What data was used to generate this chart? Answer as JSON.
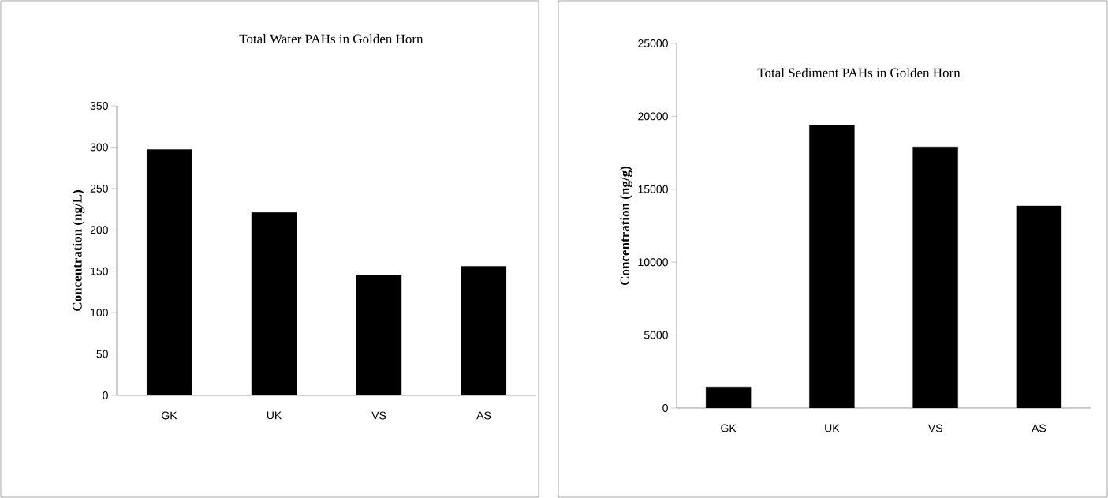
{
  "chart_data": [
    {
      "type": "bar",
      "title": "Total Water PAHs  in Golden Horn",
      "ylabel": "Concentration (ng/L)",
      "categories": [
        "GK",
        "UK",
        "VS",
        "AS"
      ],
      "values": [
        297,
        221,
        145,
        156
      ],
      "color": "#000000",
      "ylim": [
        0,
        350
      ],
      "yticks": [
        0,
        50,
        100,
        150,
        200,
        250,
        300,
        350
      ]
    },
    {
      "type": "bar",
      "title": "Total Sediment PAHs in Golden Horn",
      "ylabel": "Concentration (ng/g)",
      "categories": [
        "GK",
        "UK",
        "VS",
        "AS"
      ],
      "values": [
        1450,
        19400,
        17900,
        13850
      ],
      "color": "#000000",
      "ylim": [
        0,
        25000
      ],
      "yticks": [
        0,
        5000,
        10000,
        15000,
        20000,
        25000
      ]
    }
  ]
}
